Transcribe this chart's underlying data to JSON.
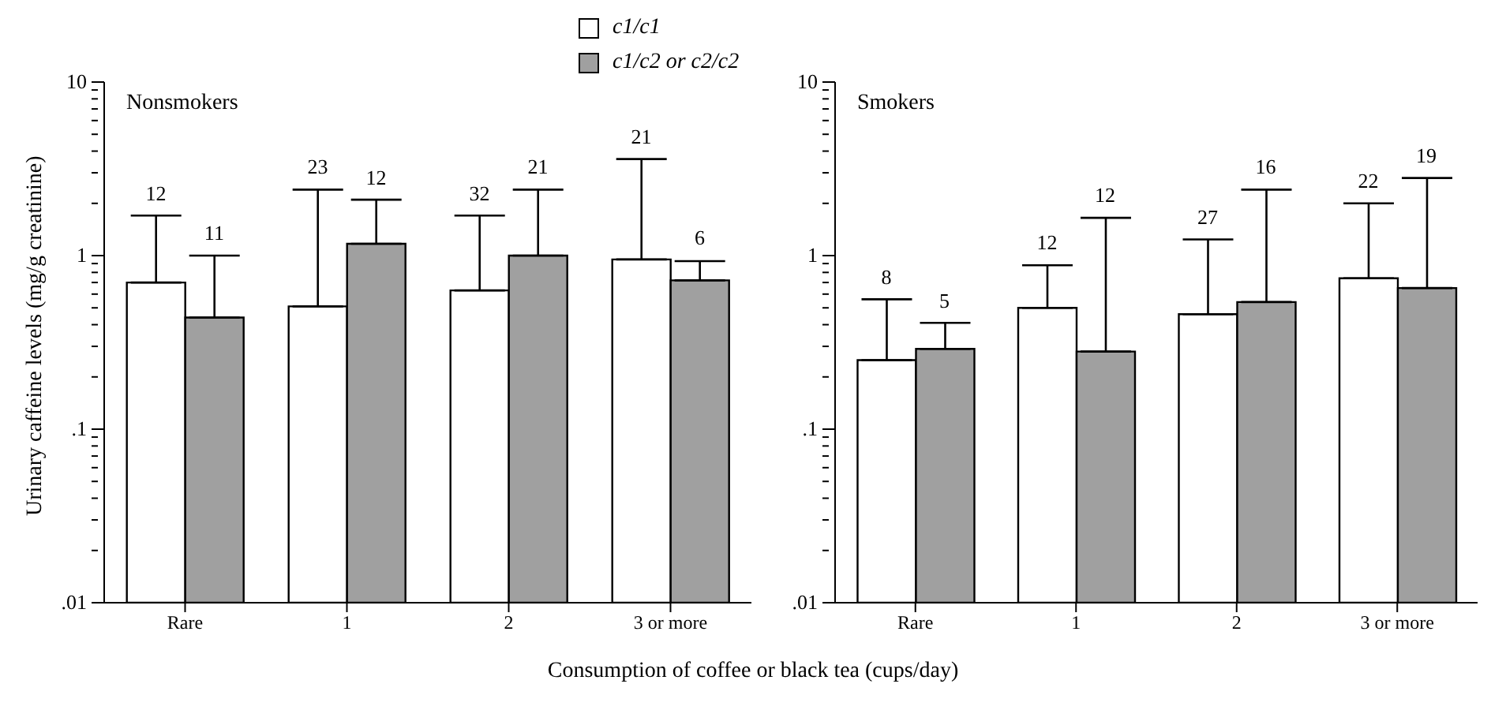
{
  "chart_data": [
    {
      "type": "bar",
      "title": "Nonsmokers",
      "xlabel": "Consumption of coffee or black tea (cups/day)",
      "ylabel": "Urinary caffeine levels (mg/g creatinine)",
      "categories": [
        "Rare",
        "1",
        "2",
        "3 or more"
      ],
      "log": true,
      "legend": "top right",
      "ylim": [
        0.01,
        10
      ],
      "yticks": [
        {
          "value": 0.01,
          "label": ".01"
        },
        {
          "value": 0.02,
          "label": null
        },
        {
          "value": 0.03,
          "label": null
        },
        {
          "value": 0.04,
          "label": null
        },
        {
          "value": 0.05,
          "label": null
        },
        {
          "value": 0.06,
          "label": null
        },
        {
          "value": 0.07,
          "label": null
        },
        {
          "value": 0.08,
          "label": null
        },
        {
          "value": 0.09,
          "label": null
        },
        {
          "value": 0.1,
          "label": ".1"
        },
        {
          "value": 0.2,
          "label": null
        },
        {
          "value": 0.3,
          "label": null
        },
        {
          "value": 0.4,
          "label": null
        },
        {
          "value": 0.5,
          "label": null
        },
        {
          "value": 0.6,
          "label": null
        },
        {
          "value": 0.7,
          "label": null
        },
        {
          "value": 0.8,
          "label": null
        },
        {
          "value": 0.9,
          "label": null
        },
        {
          "value": 1,
          "label": "1"
        },
        {
          "value": 2,
          "label": null
        },
        {
          "value": 3,
          "label": null
        },
        {
          "value": 4,
          "label": null
        },
        {
          "value": 5,
          "label": null
        },
        {
          "value": 6,
          "label": null
        },
        {
          "value": 7,
          "label": null
        },
        {
          "value": 8,
          "label": null
        },
        {
          "value": 9,
          "label": null
        },
        {
          "value": 10,
          "label": "10"
        }
      ],
      "annotations": [
        "12",
        "11",
        "23",
        "12",
        "32",
        "21",
        "21",
        "6"
      ],
      "series": [
        {
          "name": "c1/c1",
          "color": "#ffffff",
          "values": [
            0.7,
            0.51,
            0.63,
            0.95
          ],
          "errors": [
            [
              0.7,
              1.7
            ],
            [
              0.51,
              2.4
            ],
            [
              0.63,
              1.7
            ],
            [
              0.95,
              3.6
            ]
          ]
        },
        {
          "name": "c1/c2 or c2/c2",
          "color": "#a0a0a0",
          "values": [
            0.44,
            1.17,
            1.0,
            0.72
          ],
          "errors": [
            [
              0.44,
              1.0
            ],
            [
              1.17,
              2.1
            ],
            [
              1.0,
              2.4
            ],
            [
              0.72,
              0.93
            ]
          ]
        }
      ]
    },
    {
      "type": "bar",
      "title": "Smokers",
      "categories": [
        "Rare",
        "1",
        "2",
        "3 or more"
      ],
      "log": true,
      "ylim": [
        0.01,
        10
      ],
      "yticks": [
        {
          "value": 0.01,
          "label": ".01"
        },
        {
          "value": 0.02,
          "label": null
        },
        {
          "value": 0.03,
          "label": null
        },
        {
          "value": 0.04,
          "label": null
        },
        {
          "value": 0.05,
          "label": null
        },
        {
          "value": 0.06,
          "label": null
        },
        {
          "value": 0.07,
          "label": null
        },
        {
          "value": 0.08,
          "label": null
        },
        {
          "value": 0.09,
          "label": null
        },
        {
          "value": 0.1,
          "label": ".1"
        },
        {
          "value": 0.2,
          "label": null
        },
        {
          "value": 0.3,
          "label": null
        },
        {
          "value": 0.4,
          "label": null
        },
        {
          "value": 0.5,
          "label": null
        },
        {
          "value": 0.6,
          "label": null
        },
        {
          "value": 0.7,
          "label": null
        },
        {
          "value": 0.8,
          "label": null
        },
        {
          "value": 0.9,
          "label": null
        },
        {
          "value": 1,
          "label": "1"
        },
        {
          "value": 2,
          "label": null
        },
        {
          "value": 3,
          "label": null
        },
        {
          "value": 4,
          "label": null
        },
        {
          "value": 5,
          "label": null
        },
        {
          "value": 6,
          "label": null
        },
        {
          "value": 7,
          "label": null
        },
        {
          "value": 8,
          "label": null
        },
        {
          "value": 9,
          "label": null
        },
        {
          "value": 10,
          "label": "10"
        }
      ],
      "annotations": [
        "8",
        "5",
        "12",
        "12",
        "27",
        "16",
        "22",
        "19"
      ],
      "series": [
        {
          "color": "#ffffff",
          "values": [
            0.25,
            0.5,
            0.46,
            0.74
          ],
          "errors": [
            [
              0.25,
              0.56
            ],
            [
              0.5,
              0.88
            ],
            [
              0.46,
              1.24
            ],
            [
              0.74,
              2.0
            ]
          ]
        },
        {
          "color": "#a0a0a0",
          "values": [
            0.29,
            0.28,
            0.54,
            0.65
          ],
          "errors": [
            [
              0.29,
              0.41
            ],
            [
              0.28,
              1.65
            ],
            [
              0.54,
              2.4
            ],
            [
              0.65,
              2.8
            ]
          ]
        }
      ]
    }
  ]
}
